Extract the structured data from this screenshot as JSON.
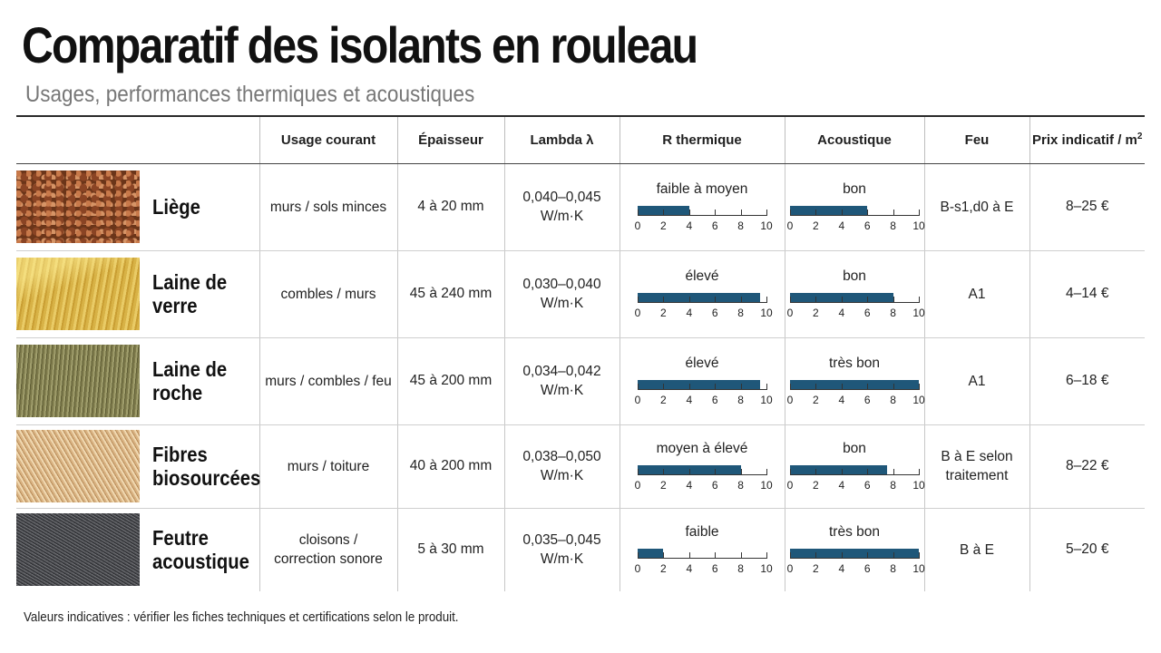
{
  "title": "Comparatif des isolants en rouleau",
  "subtitle": "Usages, performances thermiques et acoustiques",
  "headers": {
    "usage": "Usage courant",
    "epaisseur": "Épaisseur",
    "lambda": "Lambda λ",
    "r_thermique": "R thermique",
    "acoustique": "Acoustique",
    "feu": "Feu",
    "prix": "Prix indicatif / m",
    "prix_exp": "2"
  },
  "scale_ticks": [
    "0",
    "2",
    "4",
    "6",
    "8",
    "10"
  ],
  "scale_max": 10,
  "accent_color": "#1f5779",
  "rows": [
    {
      "name": "Liège",
      "swatch": "cork-texture",
      "usage": "murs / sols minces",
      "epaisseur": "4 à 20 mm",
      "lambda": "0,040–0,045\nW/m·K",
      "r_label": "faible à moyen",
      "r_value": 4,
      "a_label": "bon",
      "a_value": 6,
      "feu": "B-s1,d0 à E",
      "prix": "8–25 €"
    },
    {
      "name": "Laine de verre",
      "swatch": "glass-wool-texture",
      "usage": "combles / murs",
      "epaisseur": "45 à 240 mm",
      "lambda": "0,030–0,040\nW/m·K",
      "r_label": "élevé",
      "r_value": 9.5,
      "a_label": "bon",
      "a_value": 8,
      "feu": "A1",
      "prix": "4–14 €"
    },
    {
      "name": "Laine de roche",
      "swatch": "rock-wool-texture",
      "usage": "murs / combles / feu",
      "epaisseur": "45 à 200 mm",
      "lambda": "0,034–0,042\nW/m·K",
      "r_label": "élevé",
      "r_value": 9.5,
      "a_label": "très bon",
      "a_value": 10,
      "feu": "A1",
      "prix": "6–18 €"
    },
    {
      "name": "Fibres\nbiosourcées",
      "swatch": "bio-fibre-texture",
      "usage": "murs / toiture",
      "epaisseur": "40 à 200 mm",
      "lambda": "0,038–0,050\nW/m·K",
      "r_label": "moyen à élevé",
      "r_value": 8,
      "a_label": "bon",
      "a_value": 7.5,
      "feu": "B à E selon\ntraitement",
      "prix": "8–22 €"
    },
    {
      "name": "Feutre\nacoustique",
      "swatch": "acoustic-felt-texture",
      "usage": "cloisons /\ncorrection sonore",
      "epaisseur": "5 à 30 mm",
      "lambda": "0,035–0,045\nW/m·K",
      "r_label": "faible",
      "r_value": 2,
      "a_label": "très bon",
      "a_value": 10,
      "feu": "B à E",
      "prix": "5–20 €"
    }
  ],
  "footnote": "Valeurs indicatives : vérifier les fiches techniques et certifications selon le produit."
}
